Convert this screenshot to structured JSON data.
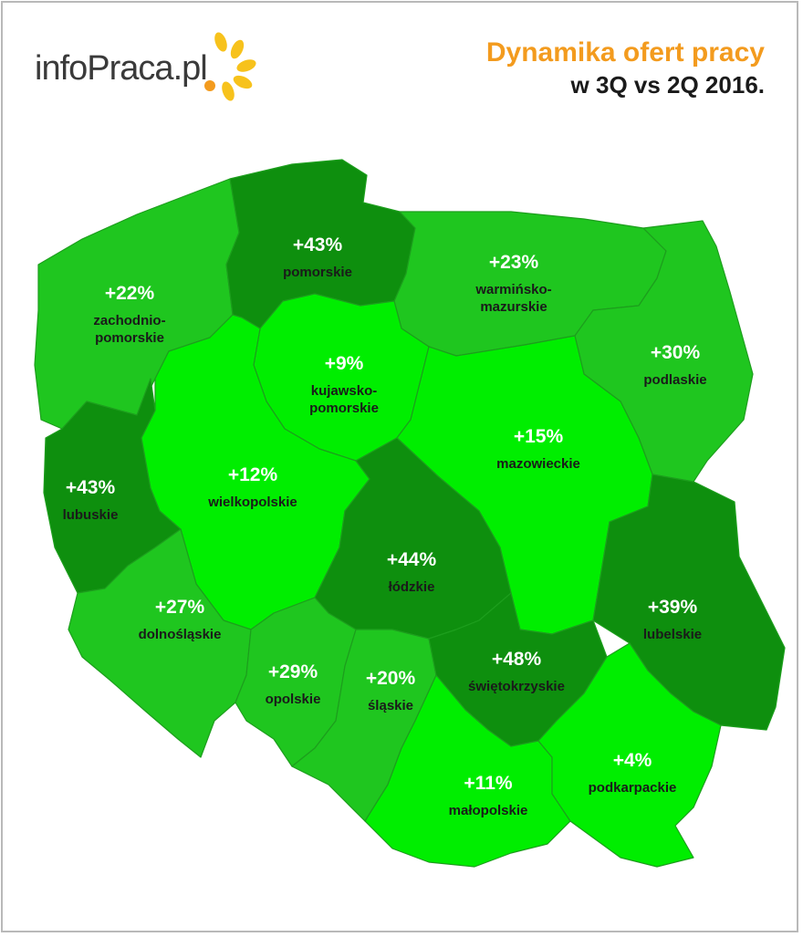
{
  "logo": {
    "text_dark": "info",
    "text_brand": "Praca",
    "text_suffix": ".pl"
  },
  "title": {
    "line1": "Dynamika ofert pracy",
    "line2": "w 3Q vs 2Q 2016."
  },
  "colors": {
    "title_accent": "#f39b1e",
    "low": "#00ee00",
    "mid": "#1fc61f",
    "high": "#0e8f0e"
  },
  "regions": [
    {
      "id": "zachodniopomorskie",
      "value": "+22%",
      "name_lines": [
        "zachodnio-",
        "pomorskie"
      ],
      "change": 22
    },
    {
      "id": "pomorskie",
      "value": "+43%",
      "name_lines": [
        "pomorskie"
      ],
      "change": 43
    },
    {
      "id": "warminsko-mazurskie",
      "value": "+23%",
      "name_lines": [
        "warmińsko-",
        "mazurskie"
      ],
      "change": 23
    },
    {
      "id": "podlaskie",
      "value": "+30%",
      "name_lines": [
        "podlaskie"
      ],
      "change": 30
    },
    {
      "id": "kujawsko-pomorskie",
      "value": "+9%",
      "name_lines": [
        "kujawsko-",
        "pomorskie"
      ],
      "change": 9
    },
    {
      "id": "lubuskie",
      "value": "+43%",
      "name_lines": [
        "lubuskie"
      ],
      "change": 43
    },
    {
      "id": "wielkopolskie",
      "value": "+12%",
      "name_lines": [
        "wielkopolskie"
      ],
      "change": 12
    },
    {
      "id": "mazowieckie",
      "value": "+15%",
      "name_lines": [
        "mazowieckie"
      ],
      "change": 15
    },
    {
      "id": "lodzkie",
      "value": "+44%",
      "name_lines": [
        "łódzkie"
      ],
      "change": 44
    },
    {
      "id": "lubelskie",
      "value": "+39%",
      "name_lines": [
        "lubelskie"
      ],
      "change": 39
    },
    {
      "id": "dolnoslaskie",
      "value": "+27%",
      "name_lines": [
        "dolnośląskie"
      ],
      "change": 27
    },
    {
      "id": "opolskie",
      "value": "+29%",
      "name_lines": [
        "opolskie"
      ],
      "change": 29
    },
    {
      "id": "slaskie",
      "value": "+20%",
      "name_lines": [
        "śląskie"
      ],
      "change": 20
    },
    {
      "id": "swietokrzyskie",
      "value": "+48%",
      "name_lines": [
        "świętokrzyskie"
      ],
      "change": 48
    },
    {
      "id": "malopolskie",
      "value": "+11%",
      "name_lines": [
        "małopolskie"
      ],
      "change": 11
    },
    {
      "id": "podkarpackie",
      "value": "+4%",
      "name_lines": [
        "podkarpackie"
      ],
      "change": 4
    }
  ]
}
